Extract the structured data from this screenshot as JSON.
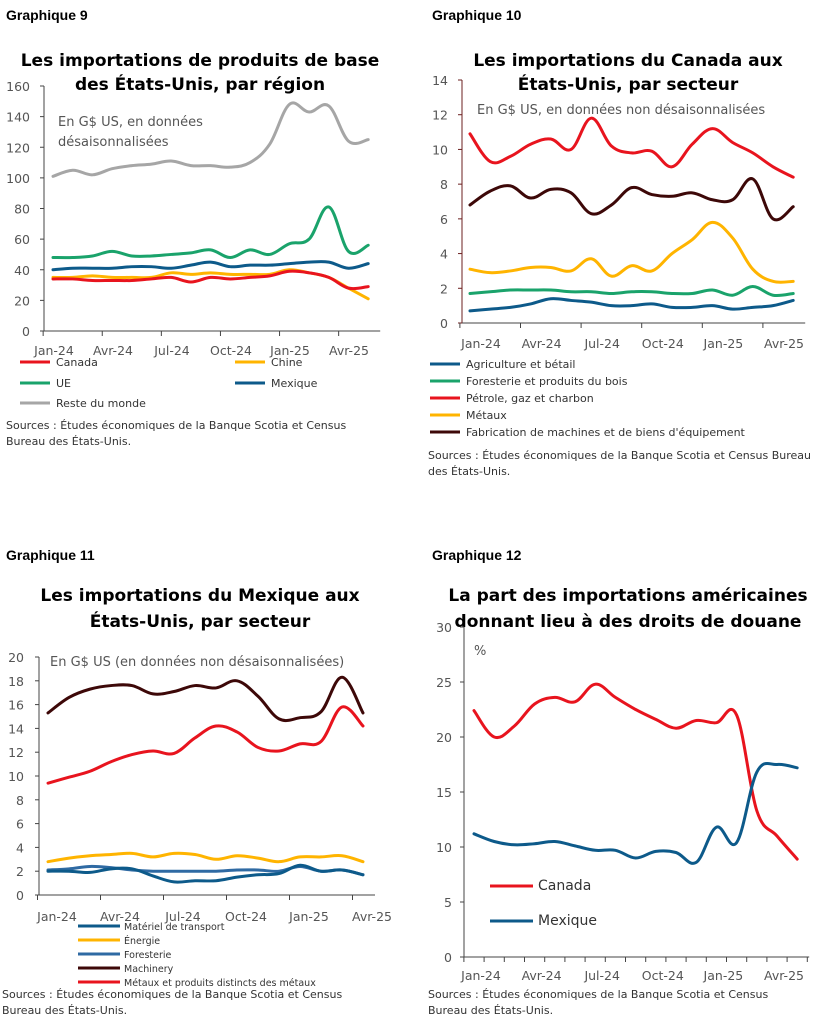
{
  "colors": {
    "red": "#e8141e",
    "yellow": "#ffb400",
    "green": "#1aa36b",
    "navy": "#0d5a8a",
    "gray": "#a6a6a6",
    "maroon": "#3d0808",
    "blue": "#2f6aa3",
    "axis_dark": "#6b1f1f",
    "axis": "#444444"
  },
  "chart_data": [
    {
      "type": "line",
      "label": "Graphique 9",
      "title": [
        "Les importations de produits de base",
        "des États-Unis, par région"
      ],
      "note": [
        "En G$ US, en données",
        "désaisonnalisées"
      ],
      "ylim": [
        0,
        160
      ],
      "yticks": [
        0,
        20,
        40,
        60,
        80,
        100,
        120,
        140,
        160
      ],
      "xticks": [
        "Jan-24",
        "Avr-24",
        "Jul-24",
        "Oct-24",
        "Jan-25",
        "Avr-25"
      ],
      "series": [
        {
          "name": "Reste du monde",
          "color": "#a6a6a6",
          "values": [
            101,
            105,
            102,
            106,
            108,
            109,
            111,
            108,
            108,
            107,
            110,
            122,
            148,
            143,
            147,
            124,
            125
          ]
        },
        {
          "name": "UE",
          "color": "#1aa36b",
          "values": [
            48,
            48,
            49,
            52,
            49,
            49,
            50,
            51,
            53,
            48,
            53,
            50,
            57,
            60,
            81,
            52,
            56
          ]
        },
        {
          "name": "Mexique",
          "color": "#0d5a8a",
          "values": [
            40,
            41,
            41,
            41,
            42,
            42,
            41,
            43,
            45,
            42,
            43,
            43,
            44,
            45,
            45,
            41,
            44
          ]
        },
        {
          "name": "Chine",
          "color": "#ffb400",
          "values": [
            35,
            35,
            36,
            35,
            35,
            35,
            38,
            37,
            38,
            37,
            37,
            37,
            40,
            38,
            35,
            28,
            21
          ]
        },
        {
          "name": "Canada",
          "color": "#e8141e",
          "values": [
            34,
            34,
            33,
            33,
            33,
            34,
            35,
            32,
            35,
            34,
            35,
            36,
            39,
            38,
            35,
            28,
            29
          ]
        }
      ],
      "legend": [
        "Canada",
        "Chine",
        "UE",
        "Mexique",
        "Reste du monde"
      ],
      "sources": [
        "Sources : Études économiques de la Banque Scotia et Census",
        "Bureau des États-Unis."
      ]
    },
    {
      "type": "line",
      "label": "Graphique 10",
      "title": [
        "Les importations du Canada aux",
        "États-Unis, par secteur"
      ],
      "note": [
        "En G$ US, en données non désaisonnalisées"
      ],
      "ylim": [
        0,
        14
      ],
      "yticks": [
        0,
        2,
        4,
        6,
        8,
        10,
        12,
        14
      ],
      "xticks": [
        "Jan-24",
        "Avr-24",
        "Jul-24",
        "Oct-24",
        "Jan-25",
        "Avr-25"
      ],
      "series": [
        {
          "name": "Pétrole, gaz et charbon",
          "color": "#e8141e",
          "values": [
            10.9,
            9.3,
            9.6,
            10.3,
            10.6,
            10.0,
            11.8,
            10.2,
            9.8,
            9.9,
            9.0,
            10.3,
            11.2,
            10.4,
            9.8,
            9.0,
            8.4
          ]
        },
        {
          "name": "Fabrication de machines et de biens d'équipement",
          "color": "#3d0808",
          "values": [
            6.8,
            7.6,
            7.9,
            7.2,
            7.7,
            7.5,
            6.3,
            6.8,
            7.8,
            7.4,
            7.3,
            7.5,
            7.1,
            7.1,
            8.3,
            6.0,
            6.7
          ]
        },
        {
          "name": "Métaux",
          "color": "#ffb400",
          "values": [
            3.1,
            2.9,
            3.0,
            3.2,
            3.2,
            3.0,
            3.7,
            2.7,
            3.3,
            3.0,
            4.0,
            4.8,
            5.8,
            4.9,
            3.1,
            2.4,
            2.4
          ]
        },
        {
          "name": "Foresterie et produits du bois",
          "color": "#1aa36b",
          "values": [
            1.7,
            1.8,
            1.9,
            1.9,
            1.9,
            1.8,
            1.8,
            1.7,
            1.8,
            1.8,
            1.7,
            1.7,
            1.9,
            1.6,
            2.1,
            1.6,
            1.7
          ]
        },
        {
          "name": "Agriculture et bétail",
          "color": "#0d5a8a",
          "values": [
            0.7,
            0.8,
            0.9,
            1.1,
            1.4,
            1.3,
            1.2,
            1.0,
            1.0,
            1.1,
            0.9,
            0.9,
            1.0,
            0.8,
            0.9,
            1.0,
            1.3
          ]
        }
      ],
      "legend": [
        "Agriculture et bétail",
        "Foresterie et produits du bois",
        "Pétrole, gaz et charbon",
        "Métaux",
        "Fabrication de machines et de biens d'équipement"
      ],
      "sources": [
        "Sources : Études économiques de la Banque Scotia et Census Bureau",
        "des États-Unis."
      ]
    },
    {
      "type": "line",
      "label": "Graphique 11",
      "title": [
        "Les importations du Mexique aux",
        "États-Unis, par secteur"
      ],
      "note": [
        "En G$ US (en données non désaisonnalisées)"
      ],
      "ylim": [
        0,
        20
      ],
      "yticks": [
        0,
        2,
        4,
        6,
        8,
        10,
        12,
        14,
        16,
        18,
        20
      ],
      "xticks": [
        "Jan-24",
        "Avr-24",
        "Jul-24",
        "Oct-24",
        "Jan-25",
        "Avr-25"
      ],
      "series": [
        {
          "name": "Machinery",
          "color": "#3d0808",
          "values": [
            15.3,
            16.6,
            17.3,
            17.6,
            17.6,
            16.9,
            17.1,
            17.6,
            17.4,
            18.0,
            16.7,
            14.8,
            14.9,
            15.4,
            18.3,
            15.3
          ]
        },
        {
          "name": "Métaux et produits distincts des métaux",
          "color": "#e8141e",
          "values": [
            9.4,
            9.9,
            10.4,
            11.2,
            11.8,
            12.1,
            11.9,
            13.2,
            14.2,
            13.7,
            12.4,
            12.1,
            12.7,
            12.9,
            15.8,
            14.2
          ]
        },
        {
          "name": "Énergie",
          "color": "#ffb400",
          "values": [
            2.8,
            3.1,
            3.3,
            3.4,
            3.5,
            3.2,
            3.5,
            3.4,
            3.0,
            3.3,
            3.1,
            2.8,
            3.2,
            3.2,
            3.3,
            2.8
          ]
        },
        {
          "name": "Foresterie",
          "color": "#2f6aa3",
          "values": [
            2.1,
            2.2,
            2.4,
            2.3,
            2.1,
            2.0,
            2.0,
            2.0,
            2.0,
            2.1,
            2.1,
            2.0,
            2.4,
            2.0,
            2.1,
            1.7
          ]
        },
        {
          "name": "Matériel de transport",
          "color": "#0d5a8a",
          "values": [
            2.0,
            2.0,
            1.9,
            2.2,
            2.2,
            1.6,
            1.1,
            1.2,
            1.2,
            1.5,
            1.7,
            1.8,
            2.5,
            2.0,
            2.1,
            1.7
          ]
        }
      ],
      "legend": [
        "Matériel de transport",
        "Énergie",
        "Foresterie",
        "Machinery",
        "Métaux et produits distincts des métaux"
      ],
      "sources": [
        "Sources : Études économiques de la Banque Scotia et Census",
        "Bureau des États-Unis."
      ]
    },
    {
      "type": "line",
      "label": "Graphique 12",
      "title": [
        "La part des importations américaines",
        "donnant lieu à des droits de douane"
      ],
      "note": [
        "%"
      ],
      "ylim": [
        0,
        30
      ],
      "yticks": [
        0,
        5,
        10,
        15,
        20,
        25,
        30
      ],
      "xticks": [
        "Jan-24",
        "Avr-24",
        "Jul-24",
        "Oct-24",
        "Jan-25",
        "Avr-25"
      ],
      "series": [
        {
          "name": "Canada",
          "color": "#e8141e",
          "values": [
            22.4,
            20.0,
            21.0,
            23.0,
            23.6,
            23.2,
            24.8,
            23.6,
            22.5,
            21.6,
            20.8,
            21.5,
            21.3,
            22.0,
            13.3,
            11.0,
            8.9
          ]
        },
        {
          "name": "Mexique",
          "color": "#0d5a8a",
          "values": [
            11.2,
            10.5,
            10.2,
            10.3,
            10.5,
            10.1,
            9.7,
            9.7,
            9.0,
            9.6,
            9.5,
            8.6,
            11.8,
            10.4,
            16.8,
            17.5,
            17.2
          ]
        }
      ],
      "legend": [
        "Canada",
        "Mexique"
      ],
      "sources": [
        "Sources : Études économiques de la Banque Scotia et Census",
        "Bureau des États-Unis."
      ]
    }
  ]
}
